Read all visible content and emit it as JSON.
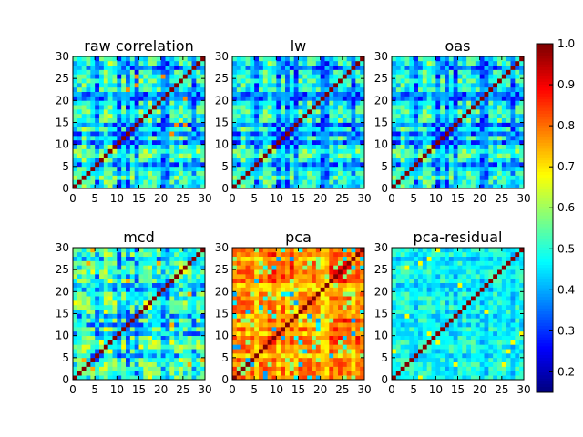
{
  "chart_data": {
    "type": "heatmap",
    "panels": [
      {
        "key": "raw",
        "title": "raw correlation",
        "variant": "raw"
      },
      {
        "key": "lw",
        "title": "lw",
        "variant": "lw"
      },
      {
        "key": "oas",
        "title": "oas",
        "variant": "oas"
      },
      {
        "key": "mcd",
        "title": "mcd",
        "variant": "mcd"
      },
      {
        "key": "pca",
        "title": "pca",
        "variant": "pca"
      },
      {
        "key": "pcares",
        "title": "pca-residual",
        "variant": "pcares"
      }
    ],
    "grid_size": 30,
    "axis_range": [
      0,
      30
    ],
    "xticks": [
      "0",
      "5",
      "10",
      "15",
      "20",
      "25",
      "30"
    ],
    "yticks": [
      "0",
      "5",
      "10",
      "15",
      "20",
      "25",
      "30"
    ],
    "colorbar": {
      "vmin": 0.15,
      "vmax": 1.0,
      "colormap": "jet",
      "ticks": [
        "0.2",
        "0.3",
        "0.4",
        "0.5",
        "0.6",
        "0.7",
        "0.8",
        "0.9",
        "1.0"
      ]
    },
    "diagonal_value": 1.0
  }
}
